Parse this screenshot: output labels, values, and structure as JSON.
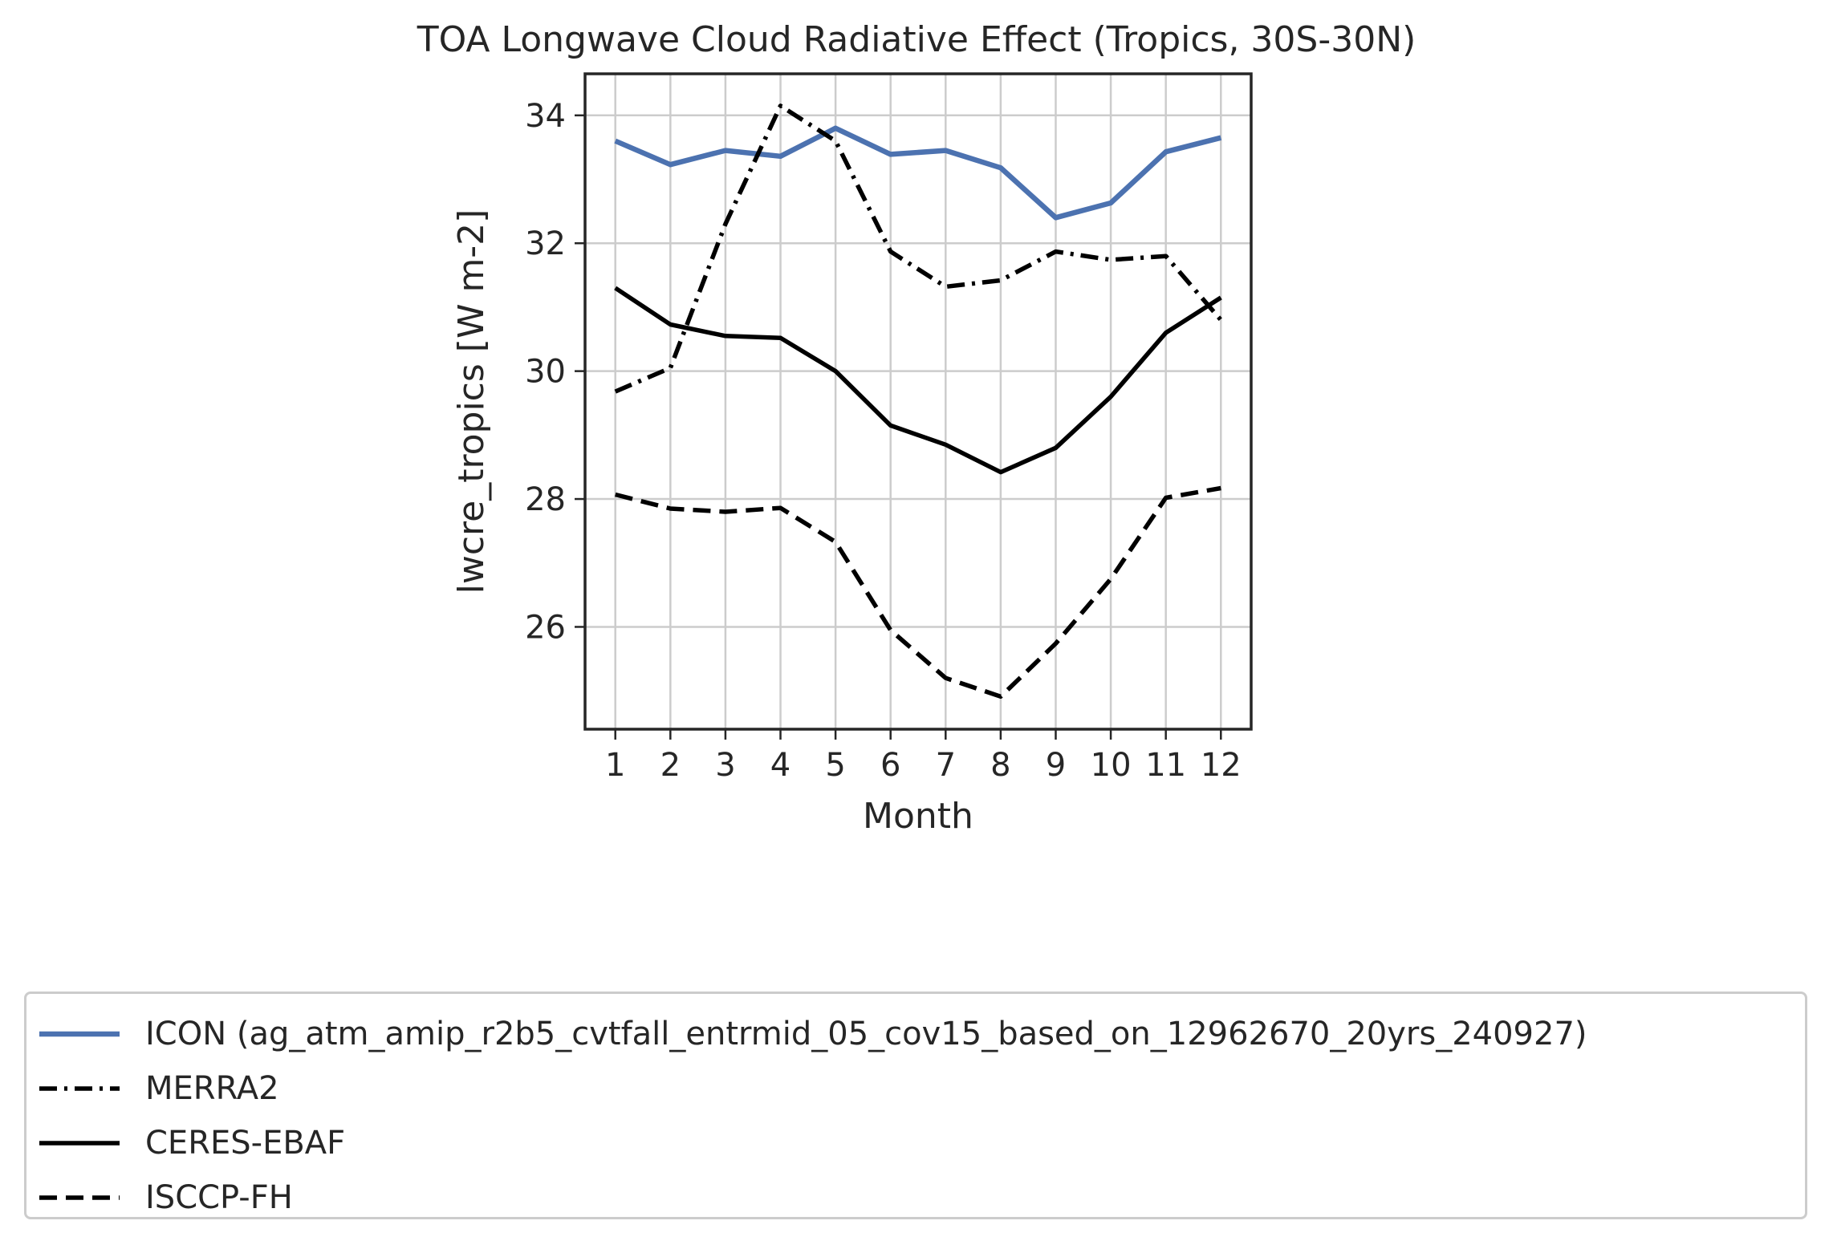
{
  "chart_data": {
    "type": "line",
    "title": "TOA Longwave Cloud Radiative Effect (Tropics, 30S-30N)",
    "xlabel": "Month",
    "ylabel": "lwcre_tropics [W m-2]",
    "x": [
      1,
      2,
      3,
      4,
      5,
      6,
      7,
      8,
      9,
      10,
      11,
      12
    ],
    "xticks": [
      "1",
      "2",
      "3",
      "4",
      "5",
      "6",
      "7",
      "8",
      "9",
      "10",
      "11",
      "12"
    ],
    "yticks": [
      26,
      28,
      30,
      32,
      34
    ],
    "xlim": [
      0.45,
      12.55
    ],
    "ylim": [
      24.4,
      34.65
    ],
    "grid": true,
    "legend_position": "bottom",
    "series": [
      {
        "name": "ICON (ag_atm_amip_r2b5_cvtfall_entrmid_05_cov15_based_on_12962670_20yrs_240927)",
        "color": "#4c72b0",
        "style": "solid",
        "values": [
          33.6,
          33.23,
          33.45,
          33.36,
          33.8,
          33.39,
          33.45,
          33.18,
          32.4,
          32.63,
          33.43,
          33.65
        ]
      },
      {
        "name": "MERRA2",
        "color": "#000000",
        "style": "dashdot",
        "values": [
          29.68,
          30.05,
          32.3,
          34.15,
          33.6,
          31.87,
          31.32,
          31.42,
          31.87,
          31.74,
          31.8,
          30.8
        ]
      },
      {
        "name": "CERES-EBAF",
        "color": "#000000",
        "style": "solid",
        "values": [
          31.3,
          30.73,
          30.55,
          30.52,
          30.0,
          29.15,
          28.85,
          28.42,
          28.8,
          29.6,
          30.6,
          31.15
        ]
      },
      {
        "name": "ISCCP-FH",
        "color": "#000000",
        "style": "dashed",
        "values": [
          28.07,
          27.85,
          27.8,
          27.86,
          27.33,
          25.95,
          25.2,
          24.91,
          25.74,
          26.75,
          28.02,
          28.17
        ]
      }
    ]
  }
}
